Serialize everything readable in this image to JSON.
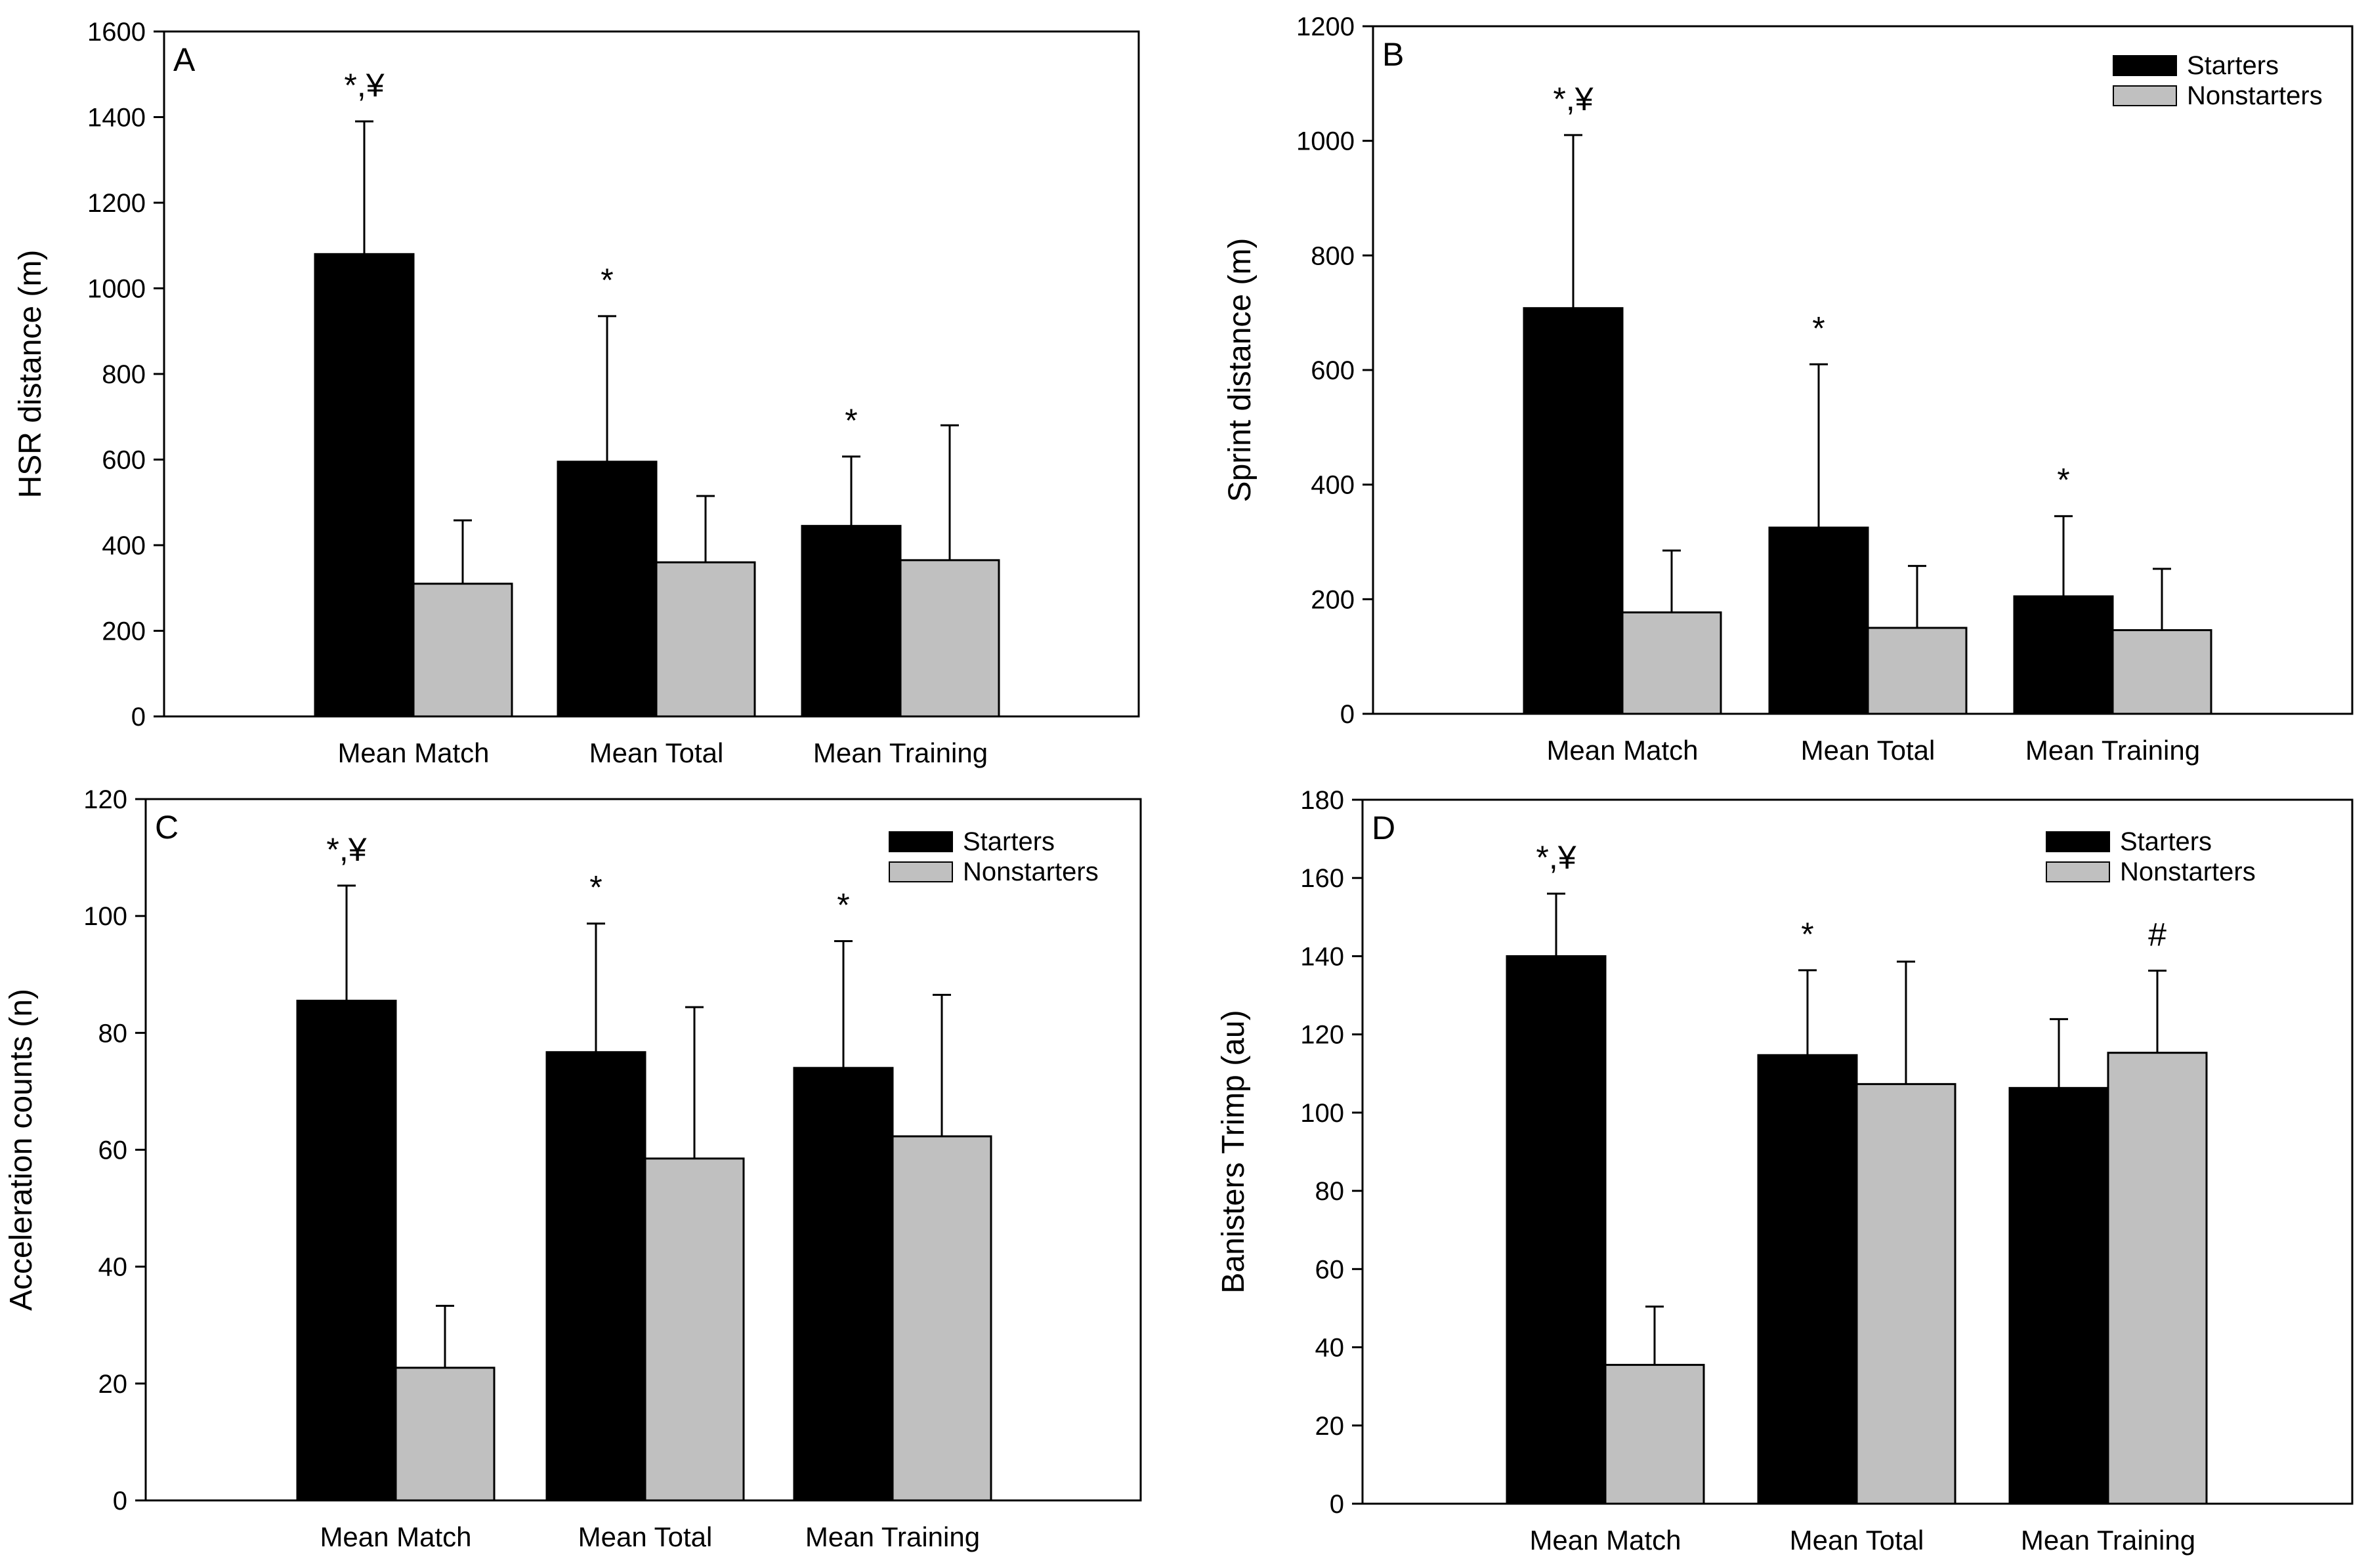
{
  "colors": {
    "starters": "#000000",
    "nonstarters": "#c0c0c0",
    "axis": "#000000",
    "background": "#ffffff"
  },
  "legend": {
    "starters_label": "Starters",
    "nonstarters_label": "Nonstarters"
  },
  "chart_data": [
    {
      "type": "bar",
      "panel": "A",
      "title": "",
      "xlabel": "",
      "ylabel": "HSR distance (m)",
      "ylim": [
        0,
        1600
      ],
      "yticks": [
        0,
        200,
        400,
        600,
        800,
        1000,
        1200,
        1400,
        1600
      ],
      "categories": [
        "Mean Match",
        "Mean Total",
        "Mean Training"
      ],
      "series": [
        {
          "name": "Starters",
          "values": [
            1080,
            595,
            445
          ],
          "errors": [
            310,
            340,
            162
          ]
        },
        {
          "name": "Nonstarters",
          "values": [
            310,
            360,
            365
          ],
          "errors": [
            148,
            155,
            315
          ]
        }
      ],
      "annotations": [
        {
          "category": 0,
          "series": 0,
          "text": "*,¥"
        },
        {
          "category": 1,
          "series": 0,
          "text": "*"
        },
        {
          "category": 2,
          "series": 0,
          "text": "*"
        }
      ],
      "legend": "none"
    },
    {
      "type": "bar",
      "panel": "B",
      "title": "",
      "xlabel": "",
      "ylabel": "Sprint distance (m)",
      "ylim": [
        0,
        1200
      ],
      "yticks": [
        0,
        200,
        400,
        600,
        800,
        1000,
        1200
      ],
      "categories": [
        "Mean Match",
        "Mean Total",
        "Mean Training"
      ],
      "series": [
        {
          "name": "Starters",
          "values": [
            708,
            325,
            205
          ],
          "errors": [
            302,
            285,
            140
          ]
        },
        {
          "name": "Nonstarters",
          "values": [
            177,
            150,
            146
          ],
          "errors": [
            108,
            108,
            107
          ]
        }
      ],
      "annotations": [
        {
          "category": 0,
          "series": 0,
          "text": "*,¥"
        },
        {
          "category": 1,
          "series": 0,
          "text": "*"
        },
        {
          "category": 2,
          "series": 0,
          "text": "*"
        }
      ],
      "legend": "top-right"
    },
    {
      "type": "bar",
      "panel": "C",
      "title": "",
      "xlabel": "",
      "ylabel": "Acceleration counts (n)",
      "ylim": [
        0,
        120
      ],
      "yticks": [
        0,
        20,
        40,
        60,
        80,
        100,
        120
      ],
      "categories": [
        "Mean Match",
        "Mean Total",
        "Mean Training"
      ],
      "series": [
        {
          "name": "Starters",
          "values": [
            85.5,
            76.7,
            74
          ],
          "errors": [
            19.7,
            22,
            21.7
          ]
        },
        {
          "name": "Nonstarters",
          "values": [
            22.7,
            58.5,
            62.3
          ],
          "errors": [
            10.6,
            25.9,
            24.2
          ]
        }
      ],
      "annotations": [
        {
          "category": 0,
          "series": 0,
          "text": "*,¥"
        },
        {
          "category": 1,
          "series": 0,
          "text": "*"
        },
        {
          "category": 2,
          "series": 0,
          "text": "*"
        }
      ],
      "legend": "top-right"
    },
    {
      "type": "bar",
      "panel": "D",
      "title": "",
      "xlabel": "",
      "ylabel": "Banisters Trimp (au)",
      "ylim": [
        0,
        180
      ],
      "yticks": [
        0,
        20,
        40,
        60,
        80,
        100,
        120,
        140,
        160,
        180
      ],
      "categories": [
        "Mean Match",
        "Mean Total",
        "Mean Training"
      ],
      "series": [
        {
          "name": "Starters",
          "values": [
            140,
            114.7,
            106.3
          ],
          "errors": [
            16,
            21.7,
            17.6
          ]
        },
        {
          "name": "Nonstarters",
          "values": [
            35.5,
            107.3,
            115.3
          ],
          "errors": [
            14.9,
            31.3,
            21
          ]
        }
      ],
      "annotations": [
        {
          "category": 0,
          "series": 0,
          "text": "*,¥"
        },
        {
          "category": 1,
          "series": 0,
          "text": "*"
        },
        {
          "category": 2,
          "series": 1,
          "text": "#"
        }
      ],
      "legend": "top-right"
    }
  ]
}
